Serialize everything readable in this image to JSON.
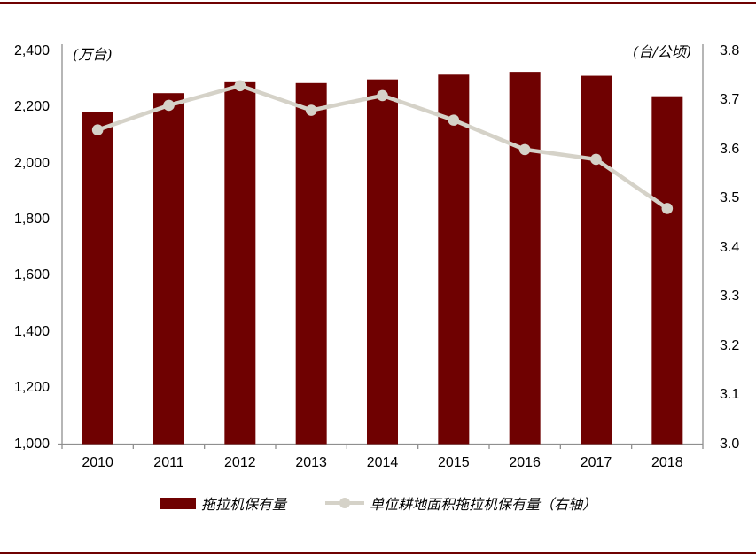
{
  "page": {
    "background": "#ffffff",
    "accent_rule_color": "#6f0101"
  },
  "chart_data": {
    "type": "bar+line",
    "categories": [
      "2010",
      "2011",
      "2012",
      "2013",
      "2014",
      "2015",
      "2016",
      "2017",
      "2018"
    ],
    "series": [
      {
        "name": "拖拉机保有量",
        "type": "bar",
        "axis": "left",
        "color": "#6f0101",
        "values": [
          2185,
          2251,
          2290,
          2287,
          2300,
          2317,
          2327,
          2313,
          2240
        ]
      },
      {
        "name": "单位耕地面积拖拉机保有量（右轴）",
        "type": "line",
        "axis": "right",
        "color": "#d5d2c8",
        "values": [
          3.64,
          3.69,
          3.73,
          3.68,
          3.71,
          3.66,
          3.6,
          3.58,
          3.48
        ]
      }
    ],
    "left_axis": {
      "unit_label": "(万台)",
      "min": 1000,
      "max": 2400,
      "ticks": [
        {
          "label": "2,400",
          "value": 2400
        },
        {
          "label": "2,200",
          "value": 2200
        },
        {
          "label": "2,000",
          "value": 2000
        },
        {
          "label": "1,800",
          "value": 1800
        },
        {
          "label": "1,600",
          "value": 1600
        },
        {
          "label": "1,400",
          "value": 1400
        },
        {
          "label": "1,200",
          "value": 1200
        },
        {
          "label": "1,000",
          "value": 1000
        }
      ]
    },
    "right_axis": {
      "unit_label": "(台/公顷)",
      "min": 3.0,
      "max": 3.8,
      "ticks": [
        {
          "label": "3.8",
          "value": 3.8
        },
        {
          "label": "3.7",
          "value": 3.7
        },
        {
          "label": "3.6",
          "value": 3.6
        },
        {
          "label": "3.5",
          "value": 3.5
        },
        {
          "label": "3.4",
          "value": 3.4
        },
        {
          "label": "3.3",
          "value": 3.3
        },
        {
          "label": "3.2",
          "value": 3.2
        },
        {
          "label": "3.1",
          "value": 3.1
        },
        {
          "label": "3.0",
          "value": 3.0
        }
      ]
    },
    "legend_position": "bottom-center",
    "grid": false,
    "axis_color": "#8f8f8f"
  }
}
